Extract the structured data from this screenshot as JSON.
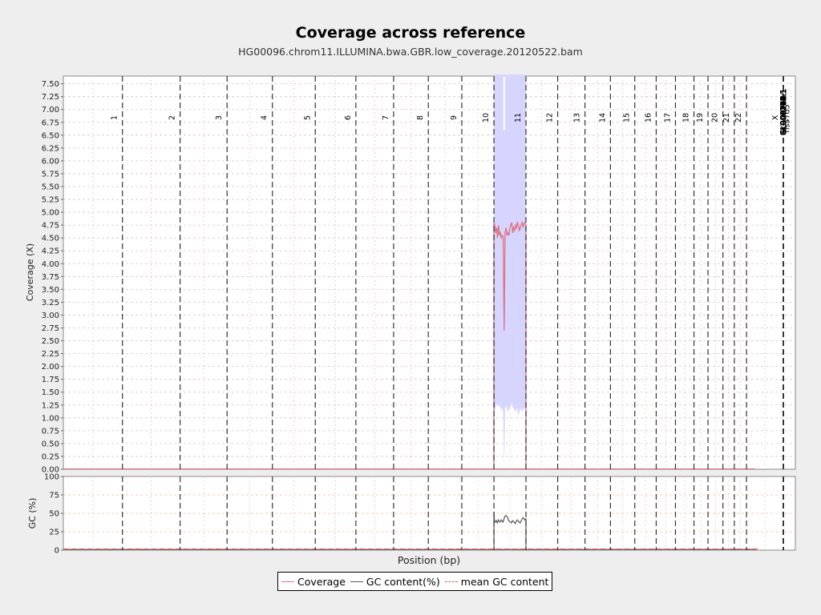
{
  "title": "Coverage across reference",
  "subtitle": "HG00096.chrom11.ILLUMINA.bwa.GBR.low_coverage.20120522.bam",
  "colors": {
    "coverage": "#e0707e",
    "gc_content": "#555555",
    "mean_gc": "#e05555",
    "band": "#d5d5ff",
    "chrom_line": "#333333",
    "grid": "#f0c0a8"
  },
  "legend": {
    "coverage": "Coverage",
    "gc_content": "GC content(%)",
    "mean_gc": "mean GC content"
  },
  "chart_data": [
    {
      "type": "area",
      "title": "Coverage across reference",
      "xlabel": "",
      "ylabel": "Coverage (X)",
      "ylim": [
        0,
        7.65
      ],
      "yticks": [
        "0.00",
        "0.25",
        "0.50",
        "0.75",
        "1.00",
        "1.25",
        "1.50",
        "1.75",
        "2.00",
        "2.25",
        "2.50",
        "2.75",
        "3.00",
        "3.25",
        "3.50",
        "3.75",
        "4.00",
        "4.25",
        "4.50",
        "4.75",
        "5.00",
        "5.25",
        "5.50",
        "5.75",
        "6.00",
        "6.25",
        "6.50",
        "6.75",
        "7.00",
        "7.25",
        "7.50"
      ],
      "chromosomes": [
        "1",
        "2",
        "3",
        "4",
        "5",
        "6",
        "7",
        "8",
        "9",
        "10",
        "11",
        "12",
        "13",
        "14",
        "15",
        "16",
        "17",
        "18",
        "19",
        "20",
        "21",
        "22",
        "X",
        "MT",
        "GL000207.1",
        "GL000226.1",
        "GL000229.1",
        "GL000231.1",
        "GL000210.1",
        "GL000239.1",
        "GL000235.1",
        "GL000201.1",
        "GL000247.1",
        "GL000245.1",
        "GL000197.1",
        "GL000203.1",
        "GL000246.1",
        "GL000249.1",
        "GL000196.1",
        "GL000248.1",
        "GL000244.1",
        "GL000238.1",
        "GL000202.1",
        "GL000234.1",
        "GL000232.1",
        "GL000206.1",
        "GL000240.1",
        "GL000236.1",
        "GL000241.1",
        "GL000243.1",
        "GL000242.1",
        "GL000230.1",
        "GL000237.1",
        "GL000233.1",
        "GL000204.1",
        "GL000198.1",
        "GL000208.1",
        "GL000191.1",
        "GL000227.1",
        "GL000228.1",
        "GL000214.1",
        "GL000221.1",
        "GL000209.1",
        "GL000218.1",
        "GL000220.1",
        "GL000213.1",
        "GL000211.1",
        "GL000199.1",
        "GL000217.1",
        "GL000216.1",
        "GL000215.1",
        "GL000205.1",
        "GL000219.1",
        "GL000224.1",
        "GL000223.1",
        "GL000195.1",
        "GL000212.1",
        "GL000222.1",
        "GL000200.1",
        "GL000193.1",
        "GL000194.1",
        "GL000225.1",
        "GL000192.1",
        "NC_007605",
        "hs37d5"
      ],
      "chrom_offsets": [
        0,
        249.25,
        492.45,
        690.47,
        881.63,
        1062.55,
        1233.67,
        1392.81,
        1539.17,
        1680.38,
        1815.91,
        1950.92,
        2084.77,
        2199.94,
        2307.29,
        2409.82,
        2500.18,
        2581.38,
        2659.46,
        2718.59,
        2781.61,
        2829.74,
        2881.05,
        3036.32,
        3036.33,
        3036.35,
        3036.36,
        3036.38,
        3036.4,
        3036.42,
        3036.44,
        3036.46,
        3036.48,
        3036.5,
        3036.52,
        3036.54,
        3036.56,
        3036.58,
        3036.6,
        3036.62,
        3036.64,
        3036.66,
        3036.68,
        3036.7,
        3036.72,
        3036.74,
        3036.76,
        3036.78,
        3036.8,
        3036.82,
        3036.84,
        3036.86,
        3036.88,
        3036.9,
        3036.92,
        3036.94,
        3036.96,
        3036.98,
        3037.0,
        3037.02,
        3037.04,
        3037.06,
        3037.08,
        3037.1,
        3037.12,
        3037.14,
        3037.16,
        3037.18,
        3037.2,
        3037.22,
        3037.24,
        3037.26,
        3037.28,
        3037.3,
        3037.32,
        3037.34,
        3037.36,
        3037.38,
        3037.4,
        3037.42,
        3037.44,
        3037.46,
        3037.48,
        3037.5,
        3037.52
      ],
      "genome_end": 3087.0,
      "coverage": {
        "x": [
          1815.9,
          1819,
          1823,
          1827,
          1831,
          1835,
          1839,
          1843,
          1847,
          1851,
          1855,
          1859,
          1863,
          1867,
          1871,
          1875,
          1879,
          1883,
          1887,
          1891,
          1895,
          1899,
          1903,
          1907,
          1911,
          1915,
          1919,
          1923,
          1927,
          1931,
          1935,
          1939,
          1943,
          1947,
          1950.9
        ],
        "y": [
          4.8,
          4.75,
          4.6,
          4.7,
          4.5,
          4.75,
          4.55,
          4.6,
          4.5,
          4.55,
          4.52,
          2.7,
          4.6,
          4.7,
          4.55,
          4.6,
          4.55,
          4.7,
          4.75,
          4.8,
          4.6,
          4.7,
          4.65,
          4.75,
          4.7,
          4.8,
          4.75,
          4.65,
          4.7,
          4.75,
          4.8,
          4.72,
          4.78,
          4.8,
          4.75
        ],
        "band_upper": 8.5,
        "band_lower": [
          1.1,
          1.15,
          1.2,
          1.25,
          1.3,
          1.2,
          1.25,
          1.2,
          1.15,
          1.2,
          1.1,
          0.0,
          1.2,
          1.25,
          1.15,
          1.1,
          1.2,
          1.15,
          1.25,
          1.3,
          1.2,
          1.2,
          1.15,
          1.1,
          1.2,
          1.15,
          1.05,
          1.1,
          1.2,
          1.15,
          1.1,
          1.2,
          1.15,
          1.2,
          1.2
        ]
      }
    },
    {
      "type": "line",
      "title": "",
      "xlabel": "Position (bp)",
      "ylabel": "GC (%)",
      "ylim": [
        0,
        100
      ],
      "yticks": [
        "0",
        "25",
        "50",
        "75",
        "100"
      ],
      "mean_gc": 1.5,
      "gc": {
        "x": [
          1815.9,
          1818,
          1822,
          1826,
          1830,
          1834,
          1838,
          1842,
          1846,
          1850,
          1854,
          1858,
          1862,
          1866,
          1870,
          1874,
          1878,
          1882,
          1886,
          1890,
          1894,
          1898,
          1902,
          1906,
          1910,
          1914,
          1918,
          1922,
          1926,
          1930,
          1934,
          1938,
          1942,
          1946,
          1950.9
        ],
        "y": [
          52,
          40,
          38,
          40,
          37,
          41,
          39,
          38,
          41,
          40,
          38,
          42,
          46,
          47,
          46,
          44,
          40,
          39,
          38,
          37,
          40,
          39,
          38,
          36,
          39,
          41,
          40,
          38,
          37,
          39,
          42,
          44,
          43,
          41,
          43
        ]
      }
    }
  ]
}
